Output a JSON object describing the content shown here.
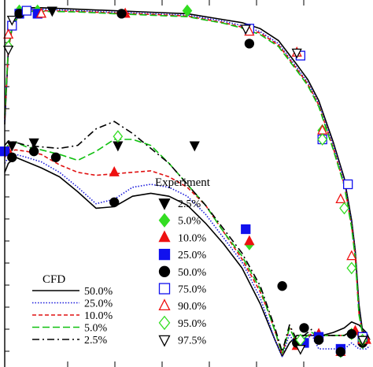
{
  "chart_data": {
    "type": "line",
    "title": "",
    "xlabel": "",
    "ylabel": "",
    "xlim": [
      0,
      1
    ],
    "ylim": [
      -1.0,
      0.2
    ],
    "grid": false,
    "legend_cfd": {
      "title": "CFD",
      "placement": "bottom-left",
      "entries": [
        {
          "label": "50.0%",
          "style": "solid",
          "color": "#000000"
        },
        {
          "label": "25.0%",
          "style": "dotted",
          "color": "#1a1adc"
        },
        {
          "label": "10.0%",
          "style": "dashed",
          "color": "#e01010"
        },
        {
          "label": "5.0%",
          "style": "longdash",
          "color": "#10c010"
        },
        {
          "label": "2.5%",
          "style": "dashdot",
          "color": "#000000"
        }
      ]
    },
    "legend_experiment": {
      "title": "Experiment",
      "placement": "center-right",
      "entries": [
        {
          "label": "2.5%",
          "marker": "tri-down-filled",
          "color": "#000000"
        },
        {
          "label": "5.0%",
          "marker": "diamond-filled",
          "color": "#33dd22"
        },
        {
          "label": "10.0%",
          "marker": "tri-up-filled",
          "color": "#ee1111"
        },
        {
          "label": "25.0%",
          "marker": "square-filled",
          "color": "#1111ee"
        },
        {
          "label": "50.0%",
          "marker": "circle-filled",
          "color": "#000000"
        },
        {
          "label": "75.0%",
          "marker": "square-open",
          "color": "#1111ee"
        },
        {
          "label": "90.0%",
          "marker": "tri-up-open",
          "color": "#ee1111"
        },
        {
          "label": "95.0%",
          "marker": "diamond-open",
          "color": "#33dd22"
        },
        {
          "label": "97.5%",
          "marker": "tri-down-open",
          "color": "#000000"
        }
      ]
    },
    "series": [
      {
        "name": "50.0%",
        "curve": "lower",
        "style": "solid",
        "color": "#000000",
        "x": [
          0.0,
          0.01,
          0.03,
          0.06,
          0.1,
          0.15,
          0.2,
          0.25,
          0.3,
          0.35,
          0.4,
          0.45,
          0.5,
          0.55,
          0.6,
          0.65,
          0.7,
          0.72,
          0.74,
          0.76,
          0.78,
          0.8,
          0.81,
          0.82,
          0.83,
          0.85,
          0.87,
          0.9,
          0.93,
          0.95,
          0.97,
          0.99,
          1.0
        ],
        "y": [
          -0.36,
          -0.33,
          -0.31,
          -0.325,
          -0.345,
          -0.375,
          -0.425,
          -0.48,
          -0.475,
          -0.44,
          -0.43,
          -0.44,
          -0.47,
          -0.53,
          -0.6,
          -0.68,
          -0.8,
          -0.86,
          -0.92,
          -0.975,
          -0.93,
          -0.905,
          -0.905,
          -0.905,
          -0.905,
          -0.905,
          -0.905,
          -0.895,
          -0.88,
          -0.86,
          -0.87,
          -0.895,
          -0.92
        ]
      },
      {
        "name": "25.0%",
        "curve": "lower",
        "style": "dotted",
        "color": "#1a1adc",
        "x": [
          0.0,
          0.01,
          0.03,
          0.06,
          0.1,
          0.15,
          0.2,
          0.25,
          0.3,
          0.35,
          0.4,
          0.45,
          0.5,
          0.55,
          0.6,
          0.65,
          0.7,
          0.72,
          0.74,
          0.76,
          0.78,
          0.8,
          0.82,
          0.84,
          0.86,
          0.9,
          0.93,
          0.95,
          0.97,
          0.99,
          1.0
        ],
        "y": [
          -0.33,
          -0.31,
          -0.3,
          -0.31,
          -0.325,
          -0.36,
          -0.41,
          -0.465,
          -0.45,
          -0.41,
          -0.4,
          -0.41,
          -0.44,
          -0.5,
          -0.58,
          -0.66,
          -0.78,
          -0.85,
          -0.92,
          -0.975,
          -0.9,
          -0.95,
          -0.935,
          -0.9,
          -0.95,
          -0.95,
          -0.95,
          -0.93,
          -0.95,
          -0.95,
          -0.94
        ]
      },
      {
        "name": "10.0%",
        "curve": "lower",
        "style": "dashed",
        "color": "#e01010",
        "x": [
          0.0,
          0.01,
          0.03,
          0.06,
          0.1,
          0.15,
          0.2,
          0.25,
          0.3,
          0.35,
          0.4,
          0.45,
          0.5,
          0.55,
          0.6,
          0.65,
          0.7,
          0.72,
          0.74,
          0.76,
          0.78,
          0.8,
          0.82,
          0.84,
          0.86,
          0.9,
          0.93,
          0.95,
          0.97,
          0.99,
          1.0
        ],
        "y": [
          -0.31,
          -0.29,
          -0.285,
          -0.29,
          -0.3,
          -0.335,
          -0.36,
          -0.37,
          -0.365,
          -0.36,
          -0.355,
          -0.375,
          -0.41,
          -0.47,
          -0.56,
          -0.65,
          -0.76,
          -0.82,
          -0.89,
          -0.97,
          -0.88,
          -0.93,
          -0.915,
          -0.9,
          -0.905,
          -0.905,
          -0.905,
          -0.89,
          -0.905,
          -0.915,
          -0.92
        ]
      },
      {
        "name": "5.0%",
        "curve": "lower",
        "style": "longdash",
        "color": "#10c010",
        "x": [
          0.0,
          0.01,
          0.03,
          0.06,
          0.1,
          0.15,
          0.2,
          0.25,
          0.3,
          0.35,
          0.4,
          0.45,
          0.5,
          0.55,
          0.6,
          0.65,
          0.7,
          0.72,
          0.74,
          0.76,
          0.78,
          0.8,
          0.82,
          0.84,
          0.86,
          0.9,
          0.93,
          0.95,
          0.97,
          0.99,
          1.0
        ],
        "y": [
          -0.29,
          -0.265,
          -0.26,
          -0.275,
          -0.285,
          -0.3,
          -0.32,
          -0.29,
          -0.25,
          -0.25,
          -0.27,
          -0.33,
          -0.4,
          -0.47,
          -0.56,
          -0.64,
          -0.75,
          -0.82,
          -0.89,
          -0.965,
          -0.88,
          -0.93,
          -0.915,
          -0.895,
          -0.905,
          -0.905,
          -0.905,
          -0.89,
          -0.905,
          -0.915,
          -0.92
        ]
      },
      {
        "name": "2.5%",
        "curve": "lower",
        "style": "dashdot",
        "color": "#000000",
        "x": [
          0.0,
          0.01,
          0.03,
          0.06,
          0.1,
          0.15,
          0.2,
          0.25,
          0.3,
          0.35,
          0.4,
          0.45,
          0.5,
          0.55,
          0.6,
          0.65,
          0.7,
          0.72,
          0.74,
          0.76,
          0.78,
          0.8,
          0.82,
          0.84,
          0.86,
          0.9,
          0.93,
          0.95,
          0.97,
          0.99,
          1.0
        ],
        "y": [
          -0.27,
          -0.255,
          -0.26,
          -0.27,
          -0.275,
          -0.28,
          -0.27,
          -0.215,
          -0.19,
          -0.23,
          -0.28,
          -0.33,
          -0.4,
          -0.47,
          -0.55,
          -0.63,
          -0.74,
          -0.81,
          -0.88,
          -0.96,
          -0.87,
          -0.92,
          -0.905,
          -0.885,
          -0.905,
          -0.905,
          -0.905,
          -0.89,
          -0.905,
          -0.915,
          -0.92
        ]
      },
      {
        "name": "50.0%",
        "curve": "upper",
        "style": "solid",
        "color": "#000000",
        "x": [
          0.0,
          0.01,
          0.02,
          0.04,
          0.07,
          0.1,
          0.2,
          0.3,
          0.4,
          0.5,
          0.6,
          0.65,
          0.7,
          0.75,
          0.8,
          0.83,
          0.86,
          0.9,
          0.93,
          0.95,
          0.96,
          0.97,
          0.98,
          0.99,
          1.0
        ],
        "y": [
          -0.2,
          0.05,
          0.12,
          0.17,
          0.19,
          0.19,
          0.185,
          0.18,
          0.175,
          0.17,
          0.15,
          0.14,
          0.12,
          0.08,
          0.0,
          -0.05,
          -0.12,
          -0.26,
          -0.38,
          -0.52,
          -0.62,
          -0.8,
          -0.89,
          -0.9,
          -0.92
        ]
      },
      {
        "name": "25.0%",
        "curve": "upper",
        "style": "dotted",
        "color": "#1a1adc",
        "x": [
          0.0,
          0.01,
          0.02,
          0.04,
          0.07,
          0.1,
          0.2,
          0.3,
          0.4,
          0.5,
          0.6,
          0.65,
          0.7,
          0.75,
          0.8,
          0.83,
          0.86,
          0.9,
          0.93,
          0.95,
          0.96,
          0.97,
          0.98,
          0.99,
          1.0
        ],
        "y": [
          -0.19,
          0.06,
          0.13,
          0.175,
          0.185,
          0.185,
          0.18,
          0.175,
          0.17,
          0.165,
          0.145,
          0.13,
          0.11,
          0.07,
          -0.01,
          -0.06,
          -0.13,
          -0.27,
          -0.39,
          -0.53,
          -0.63,
          -0.82,
          -0.9,
          -0.91,
          -0.92
        ]
      },
      {
        "name": "10.0%",
        "curve": "upper",
        "style": "dashed",
        "color": "#e01010",
        "x": [
          0.0,
          0.01,
          0.02,
          0.04,
          0.07,
          0.1,
          0.2,
          0.3,
          0.4,
          0.5,
          0.6,
          0.65,
          0.7,
          0.75,
          0.8,
          0.83,
          0.86,
          0.9,
          0.93,
          0.95,
          0.96,
          0.97,
          0.98,
          0.99,
          1.0
        ],
        "y": [
          -0.18,
          0.05,
          0.12,
          0.17,
          0.18,
          0.18,
          0.178,
          0.172,
          0.168,
          0.162,
          0.14,
          0.125,
          0.105,
          0.065,
          -0.015,
          -0.065,
          -0.135,
          -0.28,
          -0.4,
          -0.54,
          -0.64,
          -0.83,
          -0.9,
          -0.91,
          -0.92
        ]
      },
      {
        "name": "5.0%",
        "curve": "upper",
        "style": "longdash",
        "color": "#10c010",
        "x": [
          0.0,
          0.01,
          0.02,
          0.04,
          0.07,
          0.1,
          0.2,
          0.3,
          0.4,
          0.5,
          0.6,
          0.65,
          0.7,
          0.75,
          0.8,
          0.83,
          0.86,
          0.9,
          0.93,
          0.95,
          0.96,
          0.97,
          0.98,
          0.99,
          1.0
        ],
        "y": [
          -0.17,
          0.06,
          0.125,
          0.172,
          0.178,
          0.178,
          0.176,
          0.17,
          0.165,
          0.16,
          0.138,
          0.122,
          0.1,
          0.06,
          -0.02,
          -0.07,
          -0.14,
          -0.285,
          -0.405,
          -0.545,
          -0.645,
          -0.835,
          -0.9,
          -0.91,
          -0.92
        ]
      }
    ],
    "experiment_points": [
      {
        "name": "2.5%",
        "marker": "tri-down-filled",
        "x": [
          0.02,
          0.08,
          0.13,
          0.31,
          0.52
        ],
        "y": [
          -0.27,
          -0.26,
          0.18,
          -0.27,
          -0.27
        ]
      },
      {
        "name": "5.0%",
        "marker": "diamond-filled",
        "x": [
          0.04,
          0.09,
          0.5,
          0.67,
          0.81,
          0.87,
          0.92,
          0.95,
          0.98
        ],
        "y": [
          0.18,
          0.18,
          0.18,
          -0.6,
          -0.93,
          -0.22,
          -0.96,
          -0.9,
          -0.93
        ]
      },
      {
        "name": "10.0%",
        "marker": "tri-up-filled",
        "x": [
          0.01,
          0.1,
          0.3,
          0.33,
          0.67,
          0.8,
          0.86,
          0.92,
          0.96,
          0.99
        ],
        "y": [
          -0.29,
          0.17,
          -0.36,
          0.17,
          -0.59,
          -0.94,
          -0.9,
          -0.96,
          -0.89,
          -0.92
        ]
      },
      {
        "name": "25.0%",
        "marker": "square-filled",
        "x": [
          0.0,
          0.04,
          0.09,
          0.66,
          0.82,
          0.86,
          0.92,
          0.98
        ],
        "y": [
          -0.29,
          0.17,
          0.17,
          -0.55,
          -0.93,
          -0.91,
          -0.95,
          -0.92
        ]
      },
      {
        "name": "50.0%",
        "marker": "circle-filled",
        "x": [
          0.02,
          0.04,
          0.08,
          0.14,
          0.3,
          0.32,
          0.67,
          0.76,
          0.8,
          0.82,
          0.86,
          0.92,
          0.95,
          0.98
        ],
        "y": [
          -0.31,
          0.17,
          -0.29,
          -0.31,
          -0.46,
          0.17,
          0.07,
          -0.74,
          -0.93,
          -0.88,
          -0.92,
          -0.96,
          -0.9,
          -0.93
        ]
      },
      {
        "name": "75.0%",
        "marker": "square-open",
        "x": [
          0.02,
          0.06,
          0.67,
          0.81,
          0.87,
          0.94,
          0.98
        ],
        "y": [
          0.13,
          0.18,
          0.12,
          0.03,
          -0.25,
          -0.4,
          -0.91
        ]
      },
      {
        "name": "90.0%",
        "marker": "tri-up-open",
        "x": [
          0.01,
          0.1,
          0.67,
          0.8,
          0.87,
          0.92,
          0.95,
          0.98
        ],
        "y": [
          0.1,
          0.17,
          0.11,
          0.04,
          -0.22,
          -0.45,
          -0.64,
          -0.92
        ]
      },
      {
        "name": "95.0%",
        "marker": "diamond-open",
        "x": [
          0.01,
          0.31,
          0.81,
          0.87,
          0.93,
          0.95,
          0.98
        ],
        "y": [
          0.06,
          -0.24,
          -0.92,
          -0.25,
          -0.48,
          -0.68,
          -0.92
        ]
      },
      {
        "name": "97.5%",
        "marker": "tri-down-open",
        "x": [
          0.01,
          0.02,
          0.66,
          0.8,
          0.81,
          0.98
        ],
        "y": [
          0.05,
          0.15,
          0.12,
          0.04,
          -0.95,
          -0.92
        ]
      }
    ]
  }
}
